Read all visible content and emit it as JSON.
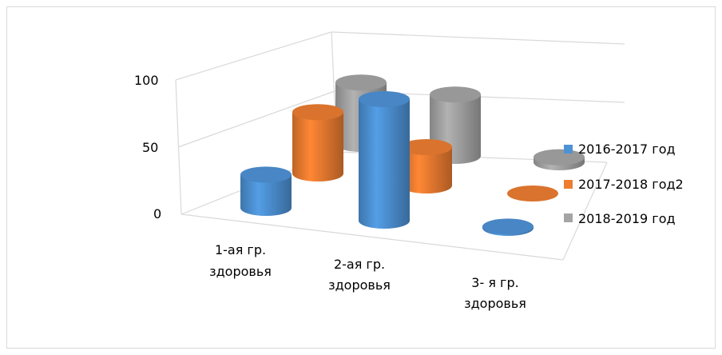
{
  "chart_data": {
    "type": "bar",
    "style": "3d-cylinder",
    "categories": [
      [
        "1-ая гр.",
        "здоровья"
      ],
      [
        "2-ая гр.",
        "здоровья"
      ],
      [
        "3- я гр.",
        "здоровья"
      ]
    ],
    "series": [
      {
        "name": "2016-2017 год",
        "color": "#4e92d6",
        "values": [
          26,
          95,
          1
        ]
      },
      {
        "name": "2017-2018 год2",
        "color": "#ed7d31",
        "values": [
          48,
          30,
          0
        ]
      },
      {
        "name": "2018-2019 год",
        "color": "#a5a5a5",
        "values": [
          48,
          48,
          4
        ]
      }
    ],
    "y_ticks": [
      "0",
      "50",
      "100"
    ],
    "ylim": [
      0,
      100
    ],
    "grid": true,
    "legend_position": "right"
  }
}
